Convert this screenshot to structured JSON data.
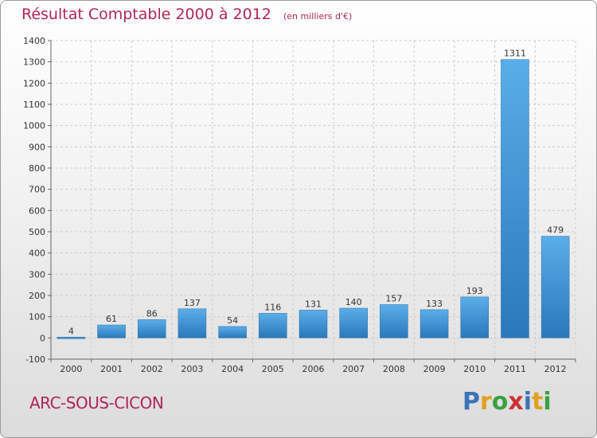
{
  "title": "Résultat Comptable 2000 à 2012",
  "subtitle": "(en milliers d'€)",
  "commune": "ARC-SOUS-CICON",
  "brand": {
    "text": "Proxiti",
    "letters": [
      {
        "ch": "P",
        "color": "#3a73b8"
      },
      {
        "ch": "r",
        "color": "#e0a020"
      },
      {
        "ch": "o",
        "color": "#3aa040"
      },
      {
        "ch": "x",
        "color": "#d03030"
      },
      {
        "ch": "i",
        "color": "#3a73b8"
      },
      {
        "ch": "t",
        "color": "#e0a020"
      },
      {
        "ch": "i",
        "color": "#3aa040"
      }
    ]
  },
  "colors": {
    "bar_light": "#5aaee8",
    "bar_dark": "#2a78bb",
    "grid": "#cccccc",
    "accent": "#b0245a"
  },
  "chart_data": {
    "type": "bar",
    "categories": [
      "2000",
      "2001",
      "2002",
      "2003",
      "2004",
      "2005",
      "2006",
      "2007",
      "2008",
      "2009",
      "2010",
      "2011",
      "2012"
    ],
    "values": [
      4,
      61,
      86,
      137,
      54,
      116,
      131,
      140,
      157,
      133,
      193,
      1311,
      479
    ],
    "data_labels": [
      "4",
      "61",
      "86",
      "137",
      "54",
      "116",
      "131",
      "140",
      "157",
      "133",
      "193",
      "1311",
      "479"
    ],
    "yticks": [
      -100,
      0,
      100,
      200,
      300,
      400,
      500,
      600,
      700,
      800,
      900,
      1000,
      1100,
      1200,
      1300,
      1400
    ],
    "ylim": [
      -100,
      1400
    ],
    "grid": true
  }
}
